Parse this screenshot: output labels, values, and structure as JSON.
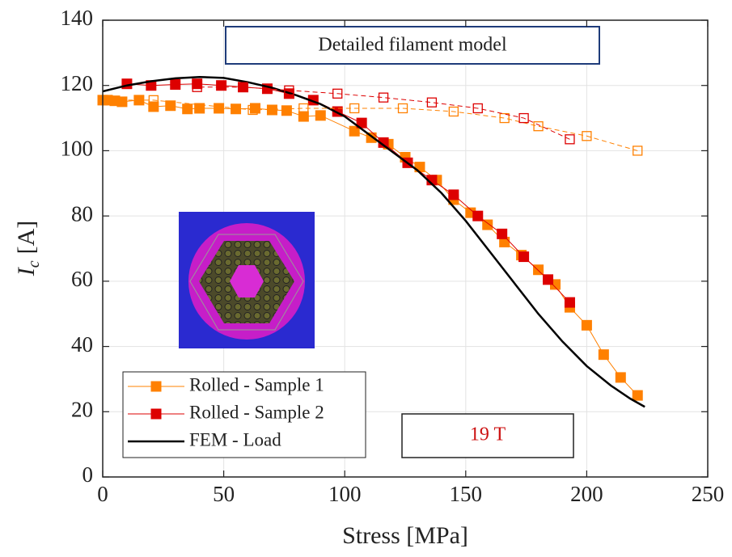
{
  "chart_data": {
    "type": "line",
    "xlabel": "Stress [MPa]",
    "ylabel": {
      "main": "I",
      "sub": "c",
      "unit": "[A]"
    },
    "xlim": [
      0,
      250
    ],
    "xticks": [
      0,
      50,
      100,
      150,
      200,
      250
    ],
    "ylim": [
      0,
      140
    ],
    "yticks": [
      0,
      20,
      40,
      60,
      80,
      100,
      120,
      140
    ],
    "grid": true,
    "legend": "lower left",
    "annotations": [
      "Detailed filament model",
      "19 T"
    ],
    "series": [
      {
        "name": "Rolled - Sample 1",
        "color": "#ff8000",
        "marker": "filled",
        "dashed": false,
        "x": [
          0,
          2,
          5,
          8,
          15,
          21,
          28,
          35,
          40,
          48,
          55,
          63,
          70,
          76,
          83,
          90,
          104,
          111,
          118,
          125,
          131,
          138,
          145,
          152,
          159,
          166,
          173,
          180,
          187,
          193,
          200,
          207,
          214,
          221
        ],
        "values": [
          115.5,
          115.5,
          115.3,
          115,
          115.5,
          113.5,
          113.8,
          112.8,
          113,
          113,
          112.8,
          113,
          112.5,
          112.3,
          110.5,
          110.8,
          106,
          104,
          102,
          98,
          95,
          91,
          85,
          81,
          77.3,
          72,
          68,
          63.5,
          59,
          52,
          46.5,
          37.5,
          30.5,
          25
        ]
      },
      {
        "name": "Rolled - Sample 2",
        "color": "#dd0000",
        "marker": "filled",
        "dashed": false,
        "x": [
          10,
          20,
          30,
          39,
          49,
          58,
          68,
          77,
          87,
          97,
          107,
          116,
          126,
          136,
          145,
          155,
          165,
          174,
          184,
          193
        ],
        "values": [
          120.5,
          120,
          120.3,
          120.5,
          120,
          119.5,
          119,
          117.5,
          115.5,
          112,
          108.5,
          102.5,
          96.3,
          91,
          86.5,
          80,
          74.5,
          67.5,
          60.5,
          53.5
        ]
      },
      {
        "name": "FEM - Load",
        "color": "#000000",
        "marker": "none",
        "dashed": false,
        "x": [
          0,
          10,
          20,
          30,
          40,
          50,
          60,
          70,
          80,
          90,
          100,
          110,
          120,
          130,
          140,
          150,
          160,
          170,
          180,
          190,
          200,
          210,
          218,
          224
        ],
        "values": [
          118.2,
          120,
          121.3,
          122.2,
          122.6,
          122.3,
          121,
          119.3,
          117,
          114.3,
          110.5,
          105,
          99.5,
          94,
          87,
          78.5,
          69,
          59.5,
          50,
          41.5,
          34,
          28,
          24,
          21.5
        ]
      },
      {
        "color": "#ff8000",
        "marker": "open",
        "dashed": true,
        "x": [
          221,
          200,
          180,
          166,
          145,
          124,
          104,
          83,
          62,
          21,
          0
        ],
        "values": [
          100,
          104.5,
          107.5,
          110,
          112,
          113,
          113,
          113,
          112.5,
          115.5,
          115.5
        ]
      },
      {
        "color": "#dd0000",
        "marker": "open",
        "dashed": true,
        "x": [
          193,
          174,
          155,
          136,
          116,
          97,
          77,
          58,
          39
        ],
        "values": [
          103.5,
          110,
          113,
          114.8,
          116.3,
          117.5,
          118.5,
          119.5,
          119.5
        ]
      }
    ]
  }
}
